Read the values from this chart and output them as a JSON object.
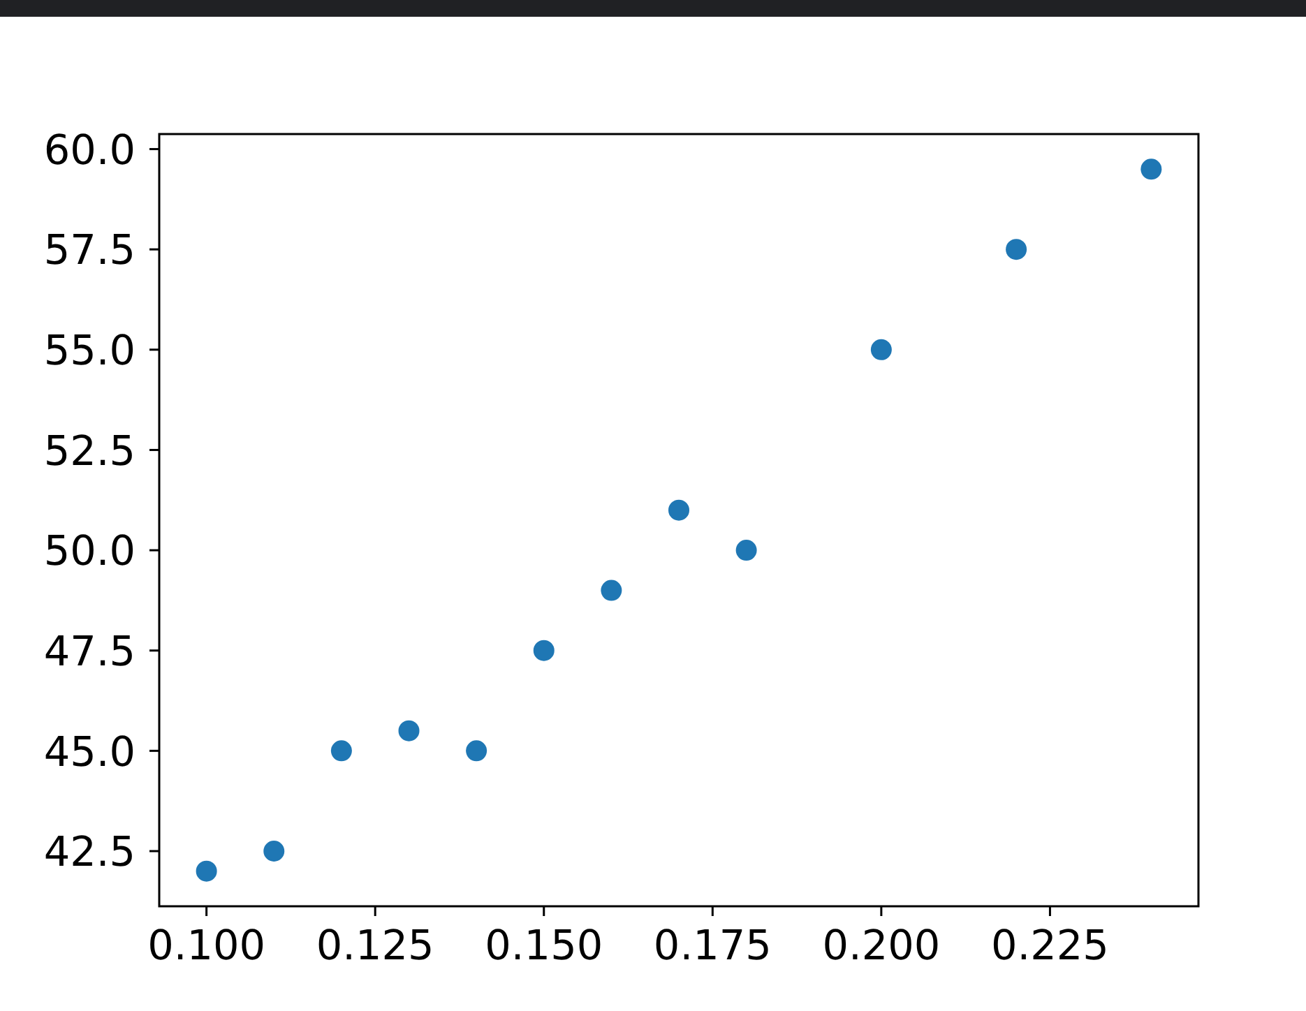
{
  "chart_data": {
    "type": "scatter",
    "x": [
      0.1,
      0.11,
      0.12,
      0.13,
      0.14,
      0.15,
      0.16,
      0.17,
      0.18,
      0.2,
      0.22,
      0.24
    ],
    "values": [
      42,
      42.5,
      45,
      45.5,
      45,
      47.5,
      49,
      51,
      50,
      55,
      57.5,
      59.5
    ],
    "color": "#1f77b4",
    "marker": "circle",
    "xlim": [
      0.093,
      0.247
    ],
    "ylim": [
      41.125,
      60.375
    ],
    "xticks": [
      {
        "value": 0.1,
        "label": "0.100"
      },
      {
        "value": 0.125,
        "label": "0.125"
      },
      {
        "value": 0.15,
        "label": "0.150"
      },
      {
        "value": 0.175,
        "label": "0.175"
      },
      {
        "value": 0.2,
        "label": "0.200"
      },
      {
        "value": 0.225,
        "label": "0.225"
      }
    ],
    "yticks": [
      {
        "value": 42.5,
        "label": "42.5"
      },
      {
        "value": 45,
        "label": "45.0"
      },
      {
        "value": 47.5,
        "label": "47.5"
      },
      {
        "value": 50,
        "label": "50.0"
      },
      {
        "value": 52.5,
        "label": "52.5"
      },
      {
        "value": 55,
        "label": "55.0"
      },
      {
        "value": 57.5,
        "label": "57.5"
      },
      {
        "value": 60,
        "label": "60.0"
      }
    ]
  }
}
